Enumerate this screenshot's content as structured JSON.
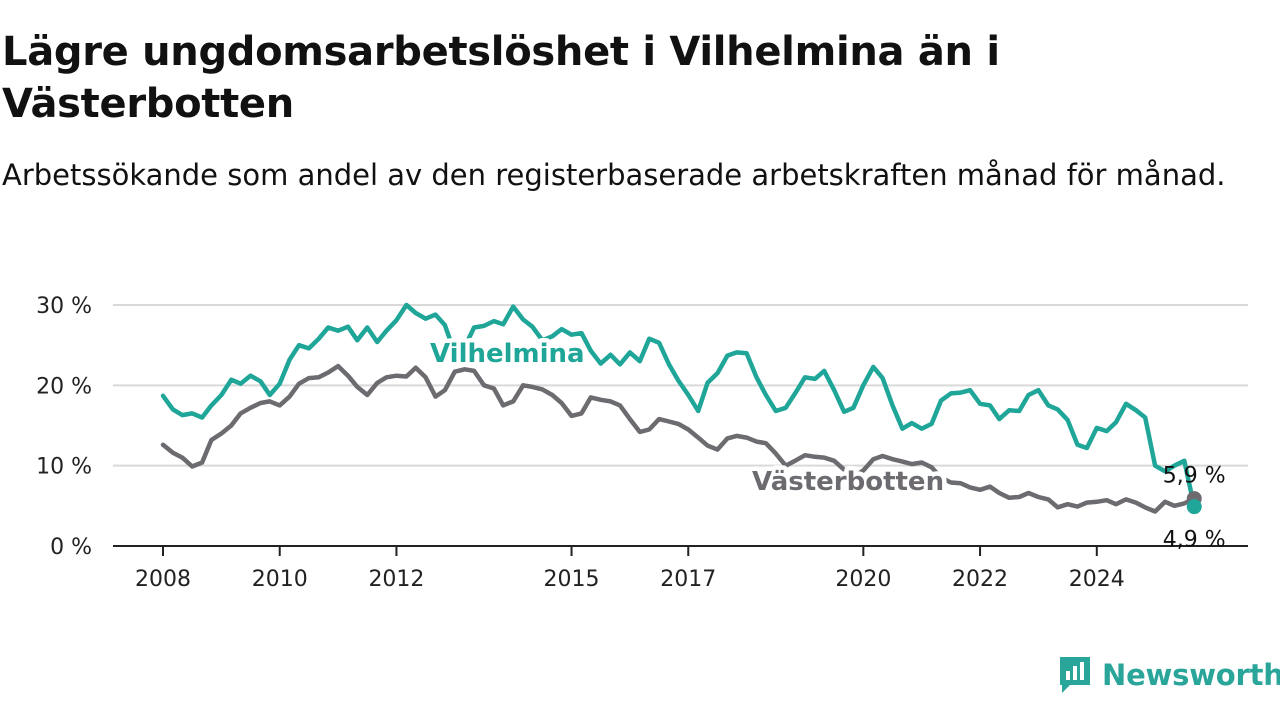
{
  "chart_data": {
    "type": "line",
    "title": "Lägre ungdomsarbetslöshet i Vilhelmina än i Västerbotten",
    "subtitle": "Arbetssökande som andel av den registerbaserade arbetskraften månad för månad.",
    "xlabel": "",
    "ylabel": "",
    "xlim": [
      2008,
      2025.7
    ],
    "ylim": [
      0,
      30
    ],
    "grid": true,
    "y_ticks": [
      0,
      10,
      20,
      30
    ],
    "y_tick_labels": [
      "0 %",
      "10 %",
      "20 %",
      "30 %"
    ],
    "x_ticks": [
      2008,
      2010,
      2012,
      2015,
      2017,
      2020,
      2022,
      2024
    ],
    "x_tick_labels": [
      "2008",
      "2010",
      "2012",
      "2015",
      "2017",
      "2020",
      "2022",
      "2024"
    ],
    "series": [
      {
        "name": "Vilhelmina",
        "color": "#1fa698",
        "end_label": "4,9 %",
        "points": [
          [
            2008.0,
            18.7
          ],
          [
            2008.17,
            17.0
          ],
          [
            2008.33,
            16.3
          ],
          [
            2008.5,
            16.5
          ],
          [
            2008.67,
            16.0
          ],
          [
            2008.83,
            17.5
          ],
          [
            2009.0,
            18.8
          ],
          [
            2009.17,
            20.7
          ],
          [
            2009.33,
            20.2
          ],
          [
            2009.5,
            21.2
          ],
          [
            2009.67,
            20.5
          ],
          [
            2009.83,
            18.8
          ],
          [
            2010.0,
            20.2
          ],
          [
            2010.17,
            23.2
          ],
          [
            2010.33,
            25.0
          ],
          [
            2010.5,
            24.6
          ],
          [
            2010.67,
            25.8
          ],
          [
            2010.83,
            27.2
          ],
          [
            2011.0,
            26.8
          ],
          [
            2011.17,
            27.3
          ],
          [
            2011.33,
            25.6
          ],
          [
            2011.5,
            27.2
          ],
          [
            2011.67,
            25.4
          ],
          [
            2011.83,
            26.8
          ],
          [
            2012.0,
            28.1
          ],
          [
            2012.17,
            30.0
          ],
          [
            2012.33,
            29.0
          ],
          [
            2012.5,
            28.3
          ],
          [
            2012.67,
            28.8
          ],
          [
            2012.83,
            27.5
          ],
          [
            2013.0,
            24.0
          ],
          [
            2013.17,
            24.8
          ],
          [
            2013.33,
            27.2
          ],
          [
            2013.5,
            27.4
          ],
          [
            2013.67,
            28.0
          ],
          [
            2013.83,
            27.6
          ],
          [
            2014.0,
            29.8
          ],
          [
            2014.17,
            28.2
          ],
          [
            2014.33,
            27.3
          ],
          [
            2014.5,
            25.6
          ],
          [
            2014.67,
            26.1
          ],
          [
            2014.83,
            27.0
          ],
          [
            2015.0,
            26.3
          ],
          [
            2015.17,
            26.5
          ],
          [
            2015.33,
            24.3
          ],
          [
            2015.5,
            22.7
          ],
          [
            2015.67,
            23.8
          ],
          [
            2015.83,
            22.6
          ],
          [
            2016.0,
            24.1
          ],
          [
            2016.17,
            23.0
          ],
          [
            2016.33,
            25.8
          ],
          [
            2016.5,
            25.3
          ],
          [
            2016.67,
            22.6
          ],
          [
            2016.83,
            20.6
          ],
          [
            2017.0,
            18.8
          ],
          [
            2017.17,
            16.8
          ],
          [
            2017.33,
            20.3
          ],
          [
            2017.5,
            21.5
          ],
          [
            2017.67,
            23.7
          ],
          [
            2017.83,
            24.1
          ],
          [
            2018.0,
            24.0
          ],
          [
            2018.17,
            21.0
          ],
          [
            2018.33,
            18.8
          ],
          [
            2018.5,
            16.8
          ],
          [
            2018.67,
            17.2
          ],
          [
            2018.83,
            19.0
          ],
          [
            2019.0,
            21.0
          ],
          [
            2019.17,
            20.8
          ],
          [
            2019.33,
            21.8
          ],
          [
            2019.5,
            19.4
          ],
          [
            2019.67,
            16.7
          ],
          [
            2019.83,
            17.2
          ],
          [
            2020.0,
            20.0
          ],
          [
            2020.17,
            22.3
          ],
          [
            2020.33,
            20.9
          ],
          [
            2020.5,
            17.5
          ],
          [
            2020.67,
            14.6
          ],
          [
            2020.83,
            15.3
          ],
          [
            2021.0,
            14.6
          ],
          [
            2021.17,
            15.2
          ],
          [
            2021.33,
            18.1
          ],
          [
            2021.5,
            19.0
          ],
          [
            2021.67,
            19.1
          ],
          [
            2021.83,
            19.4
          ],
          [
            2022.0,
            17.7
          ],
          [
            2022.17,
            17.5
          ],
          [
            2022.33,
            15.8
          ],
          [
            2022.5,
            16.9
          ],
          [
            2022.67,
            16.8
          ],
          [
            2022.83,
            18.8
          ],
          [
            2023.0,
            19.4
          ],
          [
            2023.17,
            17.5
          ],
          [
            2023.33,
            17.0
          ],
          [
            2023.5,
            15.7
          ],
          [
            2023.67,
            12.6
          ],
          [
            2023.83,
            12.2
          ],
          [
            2024.0,
            14.7
          ],
          [
            2024.17,
            14.3
          ],
          [
            2024.33,
            15.4
          ],
          [
            2024.5,
            17.7
          ],
          [
            2024.67,
            16.9
          ],
          [
            2024.83,
            16.0
          ],
          [
            2025.0,
            10.0
          ],
          [
            2025.17,
            9.3
          ],
          [
            2025.33,
            10.0
          ],
          [
            2025.5,
            10.6
          ],
          [
            2025.67,
            4.9
          ]
        ]
      },
      {
        "name": "Västerbotten",
        "color": "#6d6a70",
        "end_label": "5,9 %",
        "points": [
          [
            2008.0,
            12.6
          ],
          [
            2008.17,
            11.6
          ],
          [
            2008.33,
            11.0
          ],
          [
            2008.5,
            9.9
          ],
          [
            2008.67,
            10.4
          ],
          [
            2008.83,
            13.2
          ],
          [
            2009.0,
            14.0
          ],
          [
            2009.17,
            15.0
          ],
          [
            2009.33,
            16.5
          ],
          [
            2009.5,
            17.2
          ],
          [
            2009.67,
            17.8
          ],
          [
            2009.83,
            18.0
          ],
          [
            2010.0,
            17.5
          ],
          [
            2010.17,
            18.6
          ],
          [
            2010.33,
            20.2
          ],
          [
            2010.5,
            20.9
          ],
          [
            2010.67,
            21.0
          ],
          [
            2010.83,
            21.6
          ],
          [
            2011.0,
            22.4
          ],
          [
            2011.17,
            21.2
          ],
          [
            2011.33,
            19.8
          ],
          [
            2011.5,
            18.8
          ],
          [
            2011.67,
            20.3
          ],
          [
            2011.83,
            21.0
          ],
          [
            2012.0,
            21.2
          ],
          [
            2012.17,
            21.1
          ],
          [
            2012.33,
            22.2
          ],
          [
            2012.5,
            21.0
          ],
          [
            2012.67,
            18.6
          ],
          [
            2012.83,
            19.4
          ],
          [
            2013.0,
            21.7
          ],
          [
            2013.17,
            22.0
          ],
          [
            2013.33,
            21.8
          ],
          [
            2013.5,
            20.0
          ],
          [
            2013.67,
            19.6
          ],
          [
            2013.83,
            17.5
          ],
          [
            2014.0,
            18.0
          ],
          [
            2014.17,
            20.0
          ],
          [
            2014.33,
            19.8
          ],
          [
            2014.5,
            19.5
          ],
          [
            2014.67,
            18.8
          ],
          [
            2014.83,
            17.8
          ],
          [
            2015.0,
            16.2
          ],
          [
            2015.17,
            16.5
          ],
          [
            2015.33,
            18.5
          ],
          [
            2015.5,
            18.2
          ],
          [
            2015.67,
            18.0
          ],
          [
            2015.83,
            17.5
          ],
          [
            2016.0,
            15.8
          ],
          [
            2016.17,
            14.2
          ],
          [
            2016.33,
            14.5
          ],
          [
            2016.5,
            15.8
          ],
          [
            2016.67,
            15.5
          ],
          [
            2016.83,
            15.2
          ],
          [
            2017.0,
            14.5
          ],
          [
            2017.17,
            13.5
          ],
          [
            2017.33,
            12.5
          ],
          [
            2017.5,
            12.0
          ],
          [
            2017.67,
            13.4
          ],
          [
            2017.83,
            13.7
          ],
          [
            2018.0,
            13.5
          ],
          [
            2018.17,
            13.0
          ],
          [
            2018.33,
            12.8
          ],
          [
            2018.5,
            11.5
          ],
          [
            2018.67,
            10.0
          ],
          [
            2018.83,
            10.6
          ],
          [
            2019.0,
            11.3
          ],
          [
            2019.17,
            11.1
          ],
          [
            2019.33,
            11.0
          ],
          [
            2019.5,
            10.6
          ],
          [
            2019.67,
            9.5
          ],
          [
            2019.83,
            8.6
          ],
          [
            2020.0,
            9.4
          ],
          [
            2020.17,
            10.8
          ],
          [
            2020.33,
            11.2
          ],
          [
            2020.5,
            10.8
          ],
          [
            2020.67,
            10.5
          ],
          [
            2020.83,
            10.2
          ],
          [
            2021.0,
            10.4
          ],
          [
            2021.17,
            9.8
          ],
          [
            2021.33,
            8.5
          ],
          [
            2021.5,
            7.9
          ],
          [
            2021.67,
            7.8
          ],
          [
            2021.83,
            7.3
          ],
          [
            2022.0,
            7.0
          ],
          [
            2022.17,
            7.4
          ],
          [
            2022.33,
            6.6
          ],
          [
            2022.5,
            6.0
          ],
          [
            2022.67,
            6.1
          ],
          [
            2022.83,
            6.6
          ],
          [
            2023.0,
            6.1
          ],
          [
            2023.17,
            5.8
          ],
          [
            2023.33,
            4.8
          ],
          [
            2023.5,
            5.2
          ],
          [
            2023.67,
            4.9
          ],
          [
            2023.83,
            5.4
          ],
          [
            2024.0,
            5.5
          ],
          [
            2024.17,
            5.7
          ],
          [
            2024.33,
            5.2
          ],
          [
            2024.5,
            5.8
          ],
          [
            2024.67,
            5.4
          ],
          [
            2024.83,
            4.8
          ],
          [
            2025.0,
            4.3
          ],
          [
            2025.17,
            5.5
          ],
          [
            2025.33,
            5.0
          ],
          [
            2025.5,
            5.3
          ],
          [
            2025.67,
            5.9
          ]
        ]
      }
    ]
  },
  "brand": {
    "name": "Newsworthy",
    "logo_icon": "newsworthy-logo-icon",
    "color": "#2aa59a"
  }
}
